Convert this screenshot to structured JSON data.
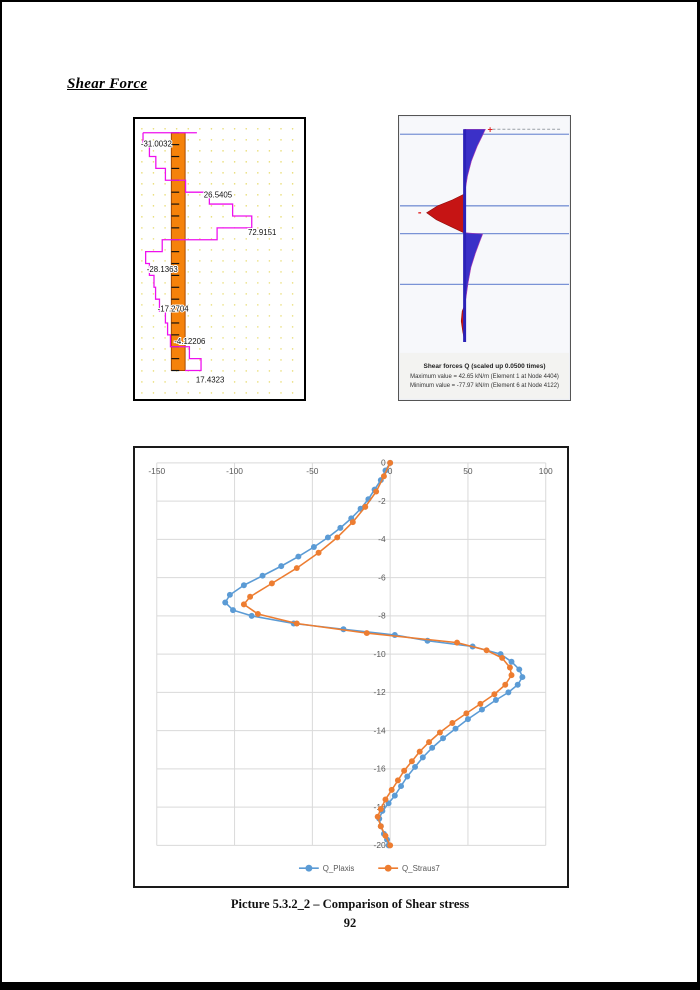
{
  "page": {
    "title": "Shear Force",
    "caption": "Picture 5.3.2_2 – Comparison of Shear stress",
    "page_number": "92"
  },
  "chart_data": [
    {
      "id": "straus7_shear_diagram",
      "type": "bar",
      "title": "Straus7 stepped shear force diagram along pile",
      "orientation": "vertical-pile-horizontal-steps",
      "unit": "kN",
      "step_values": [
        -31.0032,
        -24,
        -17,
        -6.5,
        0.5,
        26.5405,
        52,
        72.9151,
        35,
        -10,
        -28.1363,
        -24,
        -19,
        -17.2704,
        -13,
        -6.5,
        -4.12206,
        -1,
        4.7,
        17.4323
      ],
      "point_labels": [
        {
          "text": "-31.0032",
          "x": 6,
          "y": 27
        },
        {
          "text": "26.5405",
          "x": 70,
          "y": 79
        },
        {
          "text": "72.9151",
          "x": 115,
          "y": 117
        },
        {
          "text": "-28.1363",
          "x": 12,
          "y": 155
        },
        {
          "text": "-17.2704",
          "x": 23,
          "y": 195
        },
        {
          "text": "-4.12206",
          "x": 40,
          "y": 228
        },
        {
          "text": "17.4323",
          "x": 62,
          "y": 267
        }
      ],
      "colors": {
        "bar": "#F5820B",
        "bar_edge": "#A34700",
        "outline": "#EE10EE",
        "grid_dots": "#E8DC73",
        "tick": "#111111"
      }
    },
    {
      "id": "plaxis_shear_diagram",
      "type": "area",
      "caption": {
        "title": "Shear forces Q (scaled up 0.0500 times)",
        "max": "Maximum value = 42.65 kN/m (Element 1 at Node 4404)",
        "min": "Minimum value = -77.97 kN/m (Element 6 at Node 4122)"
      },
      "profile": [
        [
          13,
          42.65
        ],
        [
          20,
          36
        ],
        [
          30,
          26
        ],
        [
          45,
          14
        ],
        [
          60,
          6
        ],
        [
          78,
          0
        ],
        [
          84,
          -25
        ],
        [
          90,
          -55
        ],
        [
          97,
          -77.97
        ],
        [
          104,
          -58
        ],
        [
          111,
          -28
        ],
        [
          117,
          -2
        ],
        [
          118.5,
          37
        ],
        [
          126,
          31
        ],
        [
          138,
          22
        ],
        [
          152,
          13
        ],
        [
          168,
          7
        ],
        [
          182,
          3
        ],
        [
          190,
          0
        ],
        [
          196,
          -5
        ],
        [
          206,
          -7
        ],
        [
          216,
          -4
        ],
        [
          224,
          -1
        ],
        [
          227,
          0
        ]
      ],
      "layer_lines_y": [
        18,
        90,
        118,
        169
      ],
      "markers": {
        "plus": "+",
        "minus": "-"
      },
      "colors": {
        "positive": "#3B30C8",
        "negative": "#C61414",
        "pile": "#2B22B8",
        "layer_line": "#7A93D6",
        "background": "#ECEEF3",
        "plot": "#F7F8FB",
        "caption_bg": "#F3F3F1",
        "marker": "#E02020"
      }
    },
    {
      "id": "comparison_chart",
      "type": "line",
      "title": "",
      "xlabel": "",
      "ylabel": "",
      "xlim": [
        -150,
        100
      ],
      "ylim": [
        -20,
        0
      ],
      "x_ticks": [
        -150,
        -100,
        -50,
        0,
        50,
        100
      ],
      "y_ticks": [
        0,
        -2,
        -4,
        -6,
        -8,
        -10,
        -12,
        -14,
        -16,
        -18,
        -20
      ],
      "grid": true,
      "legend_position": "bottom",
      "label_color": "#595959",
      "grid_color": "#D9D9D9",
      "series": [
        {
          "name": "Q_Plaxis",
          "color": "#5B9BD5",
          "points": [
            [
              0,
              0
            ],
            [
              -3,
              -0.4
            ],
            [
              -6,
              -0.9
            ],
            [
              -10,
              -1.4
            ],
            [
              -14,
              -1.9
            ],
            [
              -19,
              -2.4
            ],
            [
              -25,
              -2.9
            ],
            [
              -32,
              -3.4
            ],
            [
              -40,
              -3.9
            ],
            [
              -49,
              -4.4
            ],
            [
              -59,
              -4.9
            ],
            [
              -70,
              -5.4
            ],
            [
              -82,
              -5.9
            ],
            [
              -94,
              -6.4
            ],
            [
              -103,
              -6.9
            ],
            [
              -106,
              -7.3
            ],
            [
              -101,
              -7.7
            ],
            [
              -89,
              -8.0
            ],
            [
              -62,
              -8.4
            ],
            [
              -30,
              -8.7
            ],
            [
              3,
              -9.0
            ],
            [
              24,
              -9.3
            ],
            [
              53,
              -9.6
            ],
            [
              71,
              -10.0
            ],
            [
              78,
              -10.4
            ],
            [
              83,
              -10.8
            ],
            [
              85,
              -11.2
            ],
            [
              82,
              -11.6
            ],
            [
              76,
              -12.0
            ],
            [
              68,
              -12.4
            ],
            [
              59,
              -12.9
            ],
            [
              50,
              -13.4
            ],
            [
              42,
              -13.9
            ],
            [
              34,
              -14.4
            ],
            [
              27,
              -14.9
            ],
            [
              21,
              -15.4
            ],
            [
              16,
              -15.9
            ],
            [
              11,
              -16.4
            ],
            [
              7,
              -16.9
            ],
            [
              3,
              -17.4
            ],
            [
              -1,
              -17.8
            ],
            [
              -5,
              -18.2
            ],
            [
              -7,
              -18.6
            ],
            [
              -6,
              -19.0
            ],
            [
              -4,
              -19.4
            ],
            [
              -2,
              -19.7
            ],
            [
              -1,
              -20
            ]
          ]
        },
        {
          "name": "Q_Straus7",
          "color": "#ED7D31",
          "points": [
            [
              0,
              0
            ],
            [
              -4,
              -0.7
            ],
            [
              -9,
              -1.5
            ],
            [
              -16,
              -2.3
            ],
            [
              -24,
              -3.1
            ],
            [
              -34,
              -3.9
            ],
            [
              -46,
              -4.7
            ],
            [
              -60,
              -5.5
            ],
            [
              -76,
              -6.3
            ],
            [
              -90,
              -7.0
            ],
            [
              -94,
              -7.4
            ],
            [
              -85,
              -7.9
            ],
            [
              -60,
              -8.4
            ],
            [
              -15,
              -8.9
            ],
            [
              43,
              -9.4
            ],
            [
              62,
              -9.8
            ],
            [
              72,
              -10.2
            ],
            [
              77,
              -10.7
            ],
            [
              78,
              -11.1
            ],
            [
              74,
              -11.6
            ],
            [
              67,
              -12.1
            ],
            [
              58,
              -12.6
            ],
            [
              49,
              -13.1
            ],
            [
              40,
              -13.6
            ],
            [
              32,
              -14.1
            ],
            [
              25,
              -14.6
            ],
            [
              19,
              -15.1
            ],
            [
              14,
              -15.6
            ],
            [
              9,
              -16.1
            ],
            [
              5,
              -16.6
            ],
            [
              1,
              -17.1
            ],
            [
              -3,
              -17.6
            ],
            [
              -6,
              -18.1
            ],
            [
              -8,
              -18.5
            ],
            [
              -6,
              -19.0
            ],
            [
              -3,
              -19.5
            ],
            [
              0,
              -20
            ]
          ]
        }
      ]
    }
  ]
}
